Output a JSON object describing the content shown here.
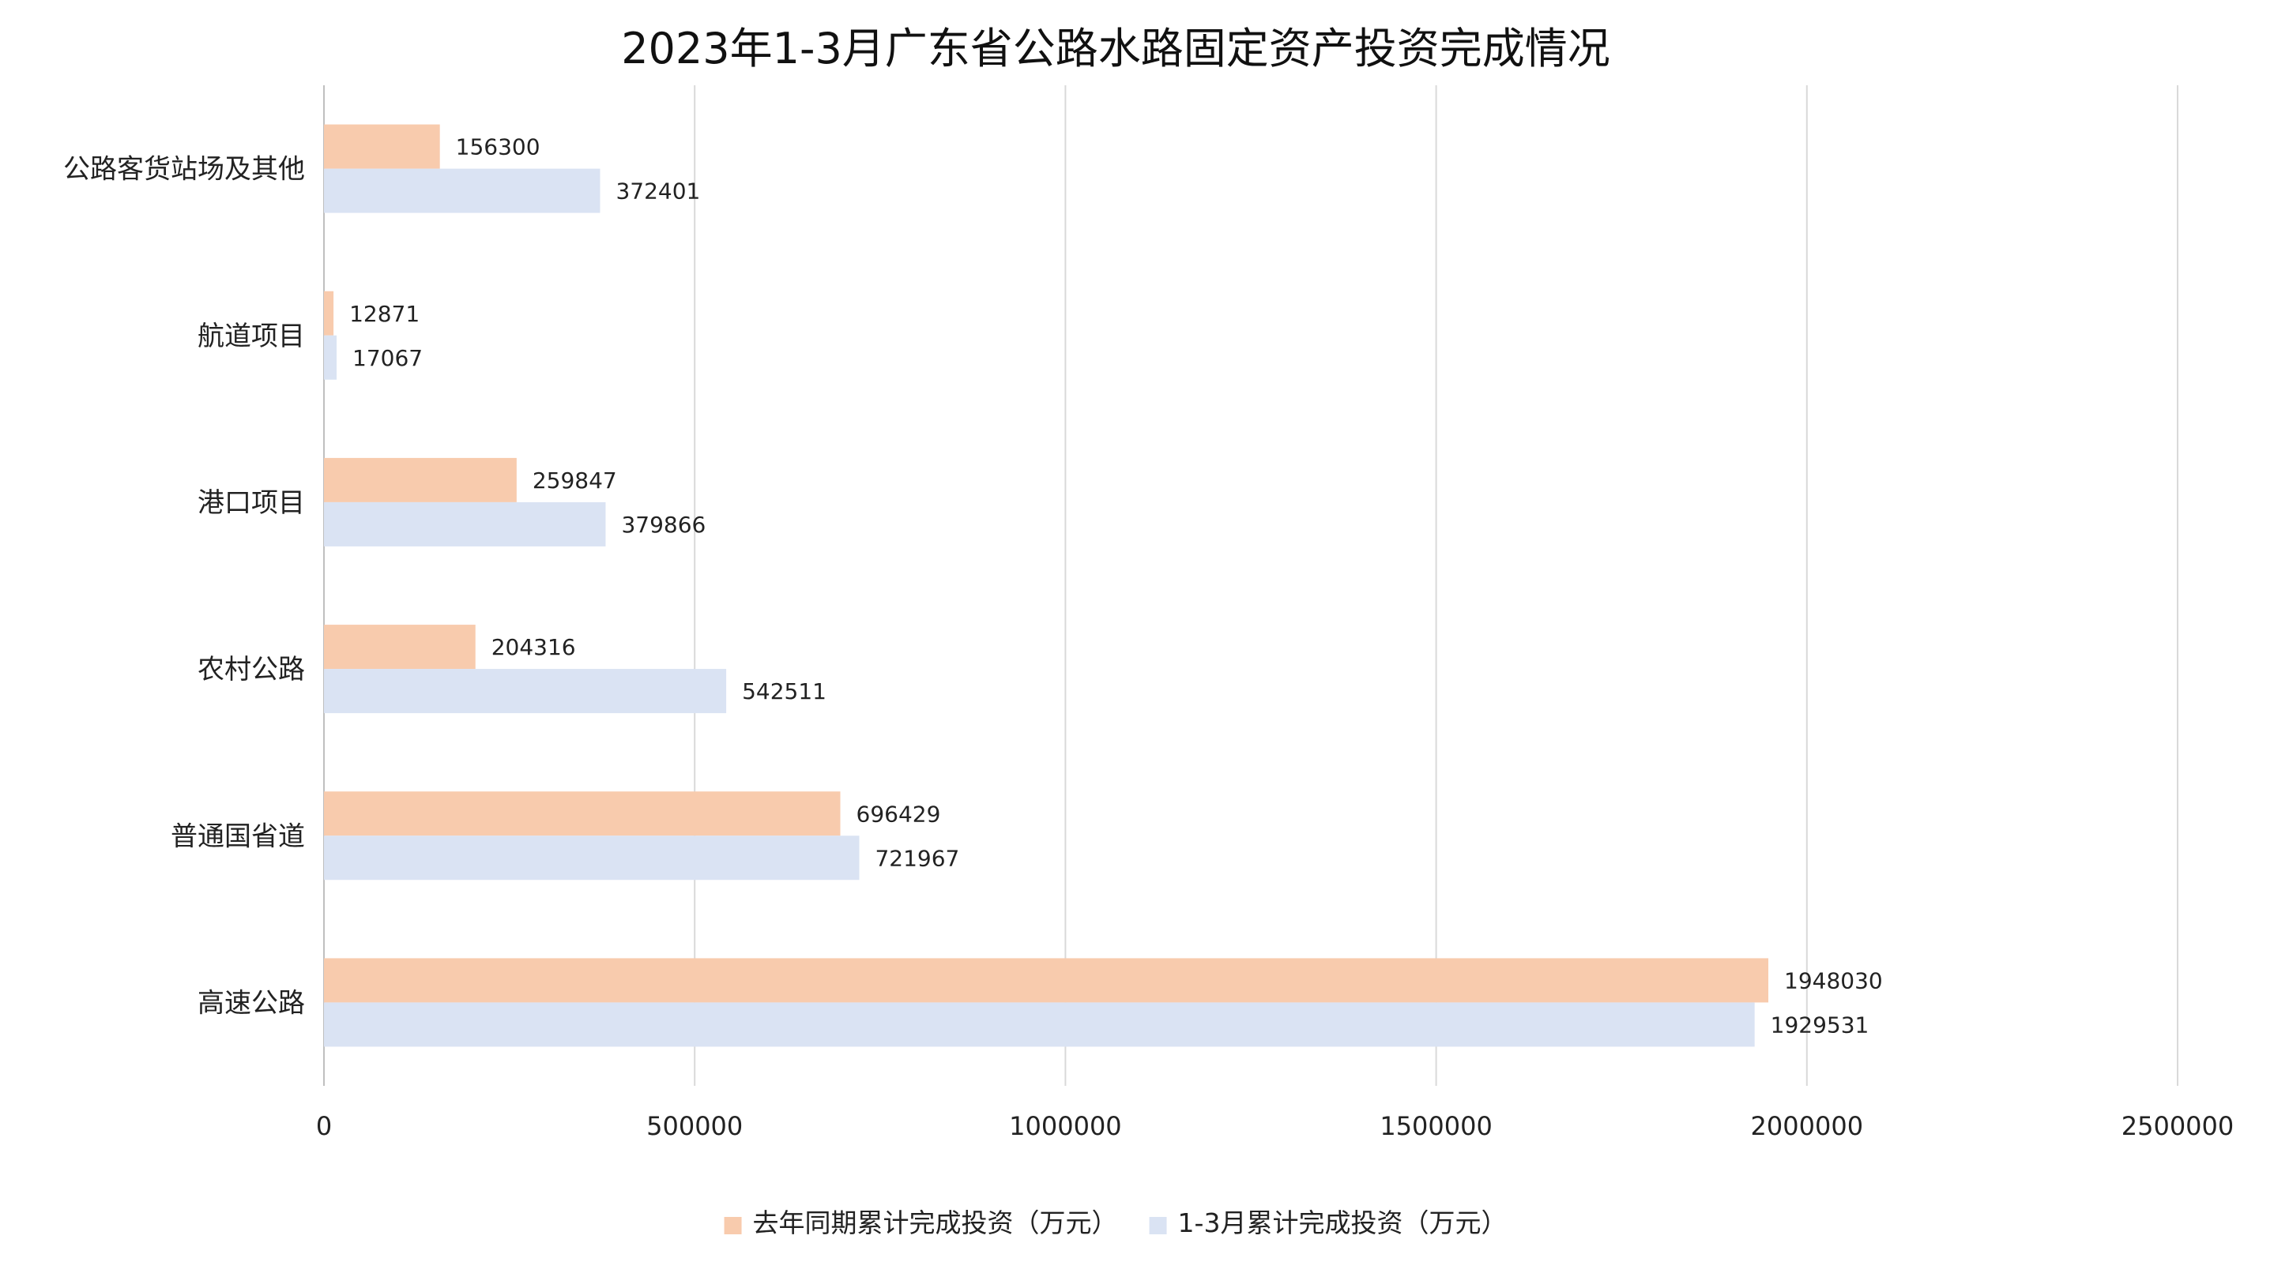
{
  "chart_data": {
    "type": "bar",
    "orientation": "horizontal",
    "title": "2023年1-3月广东省公路水路固定资产投资完成情况",
    "xlabel": "",
    "ylabel": "",
    "categories": [
      "公路客货站场及其他",
      "航道项目",
      "港口项目",
      "农村公路",
      "普通国省道",
      "高速公路"
    ],
    "series": [
      {
        "name": "去年同期累计完成投资（万元）",
        "color": "#f8cbad",
        "values": [
          156300,
          12871,
          259847,
          204316,
          696429,
          1948030
        ]
      },
      {
        "name": "1-3月累计完成投资（万元）",
        "color": "#dae3f3",
        "values": [
          372401,
          17067,
          379866,
          542511,
          721967,
          1929531
        ]
      }
    ],
    "xlim": [
      0,
      2500000
    ],
    "ticks": [
      0,
      500000,
      1000000,
      1500000,
      2000000,
      2500000
    ],
    "grid": true,
    "legend": "bottom",
    "data_labels": true
  }
}
